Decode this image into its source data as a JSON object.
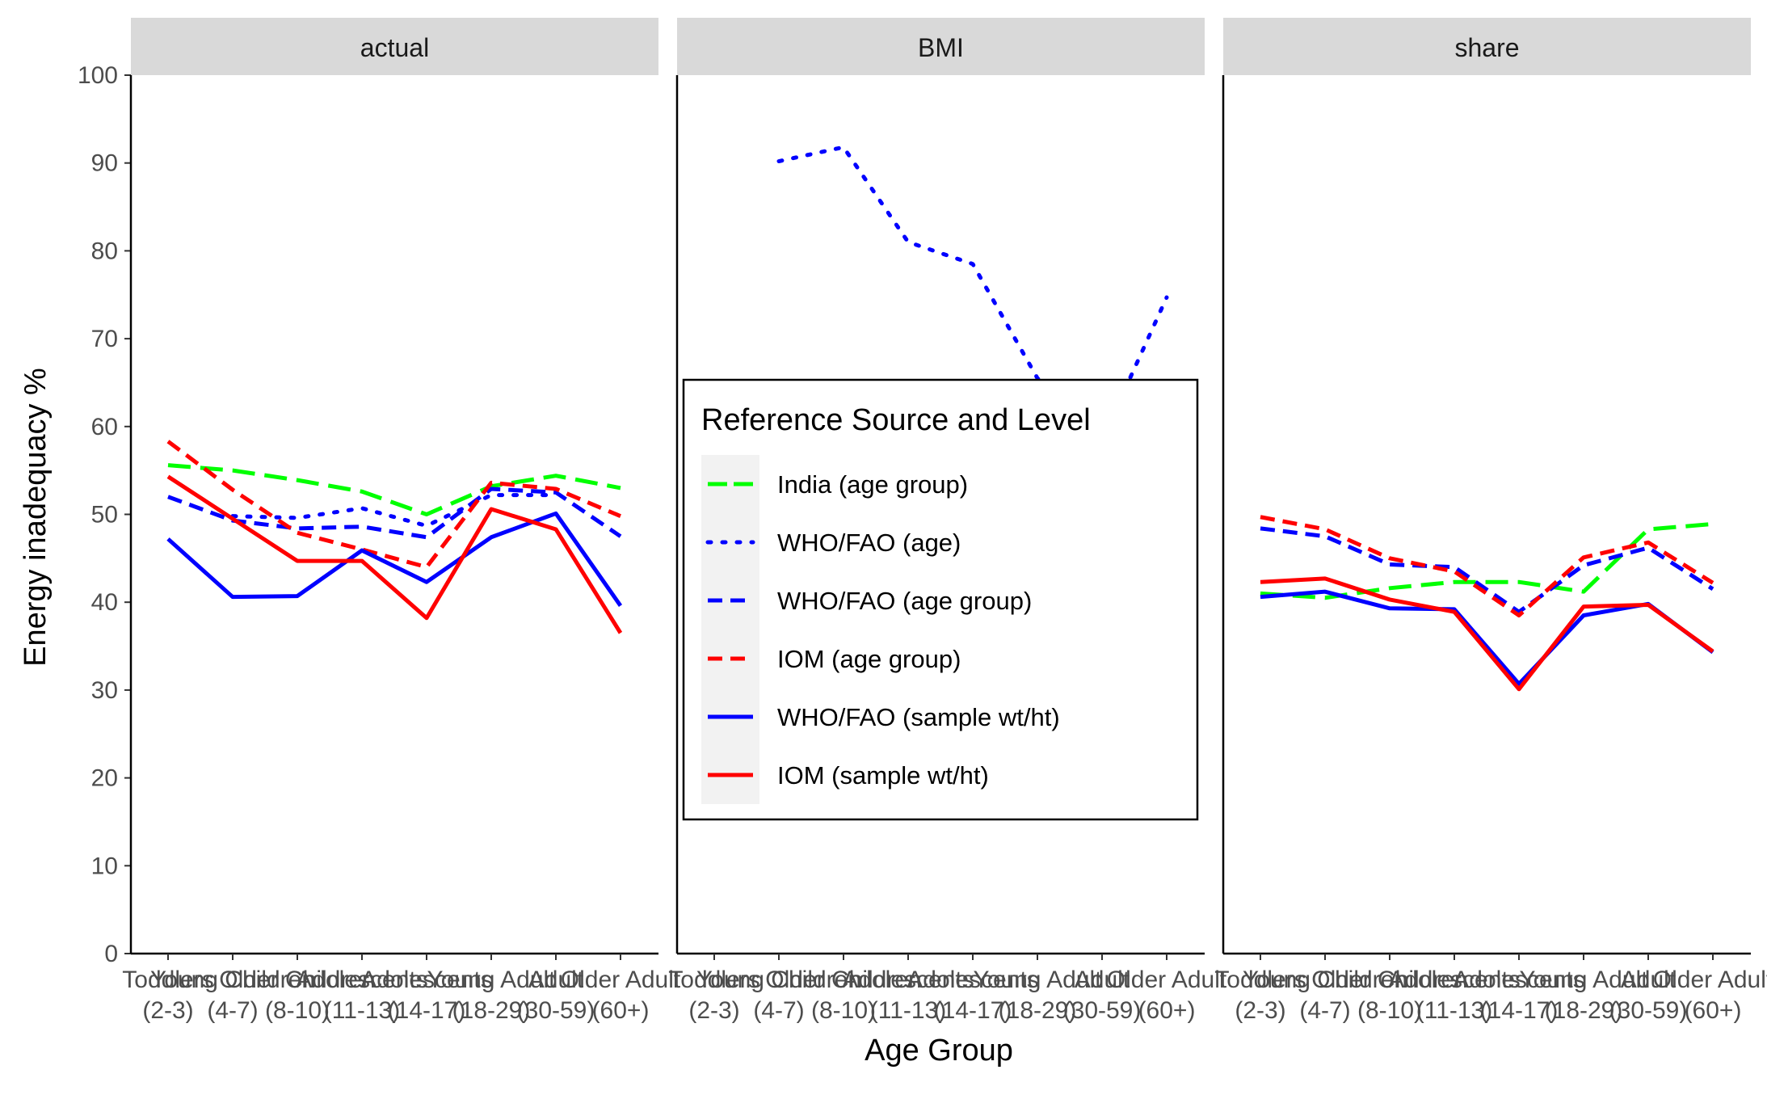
{
  "chart_data": {
    "type": "line",
    "xlabel": "Age Group",
    "ylabel": "Energy inadequacy %",
    "ylim": [
      0,
      100
    ],
    "y_ticks": [
      0,
      10,
      20,
      30,
      40,
      50,
      60,
      70,
      80,
      90,
      100
    ],
    "categories": [
      [
        "Toddlers",
        "(2-3)"
      ],
      [
        "Young Children",
        "(4-7)"
      ],
      [
        "Older Children",
        "(8-10)"
      ],
      [
        "Adolescents",
        "(11-13)"
      ],
      [
        "Adolescents",
        "(14-17)"
      ],
      [
        "Young Adult",
        "(18-29)"
      ],
      [
        "Adult",
        "(30-59)"
      ],
      [
        "Older Adult",
        "(60+)"
      ]
    ],
    "legend": {
      "title": "Reference Source and Level",
      "position": "center",
      "entries": [
        {
          "label": "India (age group)",
          "color": "#00ff00",
          "dash": "longdash"
        },
        {
          "label": "WHO/FAO (age)",
          "color": "#0000ff",
          "dash": "dotted"
        },
        {
          "label": "WHO/FAO (age group)",
          "color": "#0000ff",
          "dash": "dashed"
        },
        {
          "label": "IOM (age group)",
          "color": "#ff0000",
          "dash": "dashed"
        },
        {
          "label": "WHO/FAO (sample wt/ht)",
          "color": "#0000ff",
          "dash": "solid"
        },
        {
          "label": "IOM (sample wt/ht)",
          "color": "#ff0000",
          "dash": "solid"
        }
      ]
    },
    "panels": [
      {
        "title": "actual",
        "series": [
          {
            "name": "India (age group)",
            "values": [
              55.6,
              55,
              53.9,
              52.6,
              50,
              53.2,
              54.4,
              53
            ]
          },
          {
            "name": "WHO/FAO (age)",
            "values": [
              null,
              49.8,
              49.6,
              50.7,
              48.7,
              52.2,
              52.2,
              null
            ]
          },
          {
            "name": "WHO/FAO (age group)",
            "values": [
              52,
              49.3,
              48.4,
              48.6,
              47.4,
              52.9,
              52.5,
              47.5
            ]
          },
          {
            "name": "IOM (age group)",
            "values": [
              58.3,
              52.8,
              47.9,
              46,
              44,
              53.6,
              52.9,
              49.8
            ]
          },
          {
            "name": "WHO/FAO (sample wt/ht)",
            "values": [
              47.2,
              40.6,
              40.7,
              45.9,
              42.3,
              47.4,
              50.1,
              39.6
            ]
          },
          {
            "name": "IOM (sample wt/ht)",
            "values": [
              54.3,
              49.5,
              44.7,
              44.7,
              38.2,
              50.6,
              48.3,
              36.5
            ]
          }
        ]
      },
      {
        "title": "BMI",
        "series": [
          {
            "name": "WHO/FAO (age)",
            "values": [
              null,
              90.2,
              91.8,
              81,
              78.5,
              65.5,
              58.5,
              74.7
            ]
          }
        ]
      },
      {
        "title": "share",
        "series": [
          {
            "name": "India (age group)",
            "values": [
              41,
              40.5,
              41.6,
              42.3,
              42.3,
              41.2,
              48.3,
              48.9
            ]
          },
          {
            "name": "WHO/FAO (age group)",
            "values": [
              48.4,
              47.5,
              44.3,
              44,
              38.9,
              44.2,
              46.2,
              41.5
            ]
          },
          {
            "name": "IOM (age group)",
            "values": [
              49.7,
              48.3,
              45,
              43.5,
              38.5,
              45.1,
              46.8,
              42.2
            ]
          },
          {
            "name": "WHO/FAO (sample wt/ht)",
            "values": [
              40.6,
              41.2,
              39.3,
              39.2,
              30.7,
              38.5,
              39.8,
              34.3
            ]
          },
          {
            "name": "IOM (sample wt/ht)",
            "values": [
              42.3,
              42.7,
              40.3,
              38.9,
              30.1,
              39.5,
              39.7,
              34.4
            ]
          }
        ]
      }
    ]
  }
}
